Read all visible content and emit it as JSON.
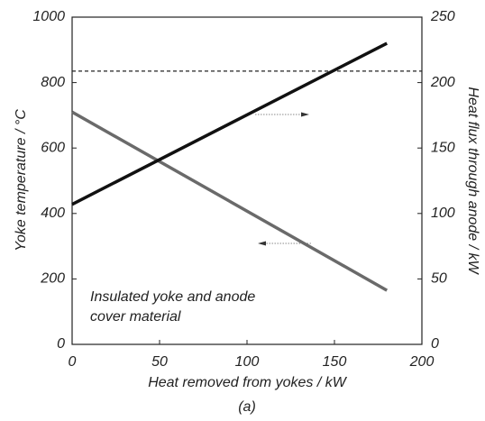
{
  "chart_data": {
    "type": "line",
    "xlabel": "Heat removed from yokes  / kW",
    "ylabel": "Yoke temperature  / °C",
    "y2label": "Heat flux through anode  / kW",
    "annotation": [
      "Insulated  yoke and anode",
      "cover material"
    ],
    "caption": "(a)",
    "x": [
      0,
      180
    ],
    "series": [
      {
        "color": "#6a6a6a",
        "values": [
          710,
          165
        ]
      },
      {
        "color": "#111111",
        "values": [
          107,
          230
        ],
        "axis": "y2"
      }
    ],
    "hline": 835,
    "xlim": [
      0,
      200
    ],
    "xticks": [
      0,
      50,
      100,
      150,
      200
    ],
    "ylim": [
      0,
      1000
    ],
    "yticks": [
      0,
      200,
      400,
      600,
      800,
      1000
    ],
    "y2lim": [
      0,
      250
    ],
    "y2ticks": [
      0,
      50,
      100,
      150,
      200,
      250
    ]
  }
}
